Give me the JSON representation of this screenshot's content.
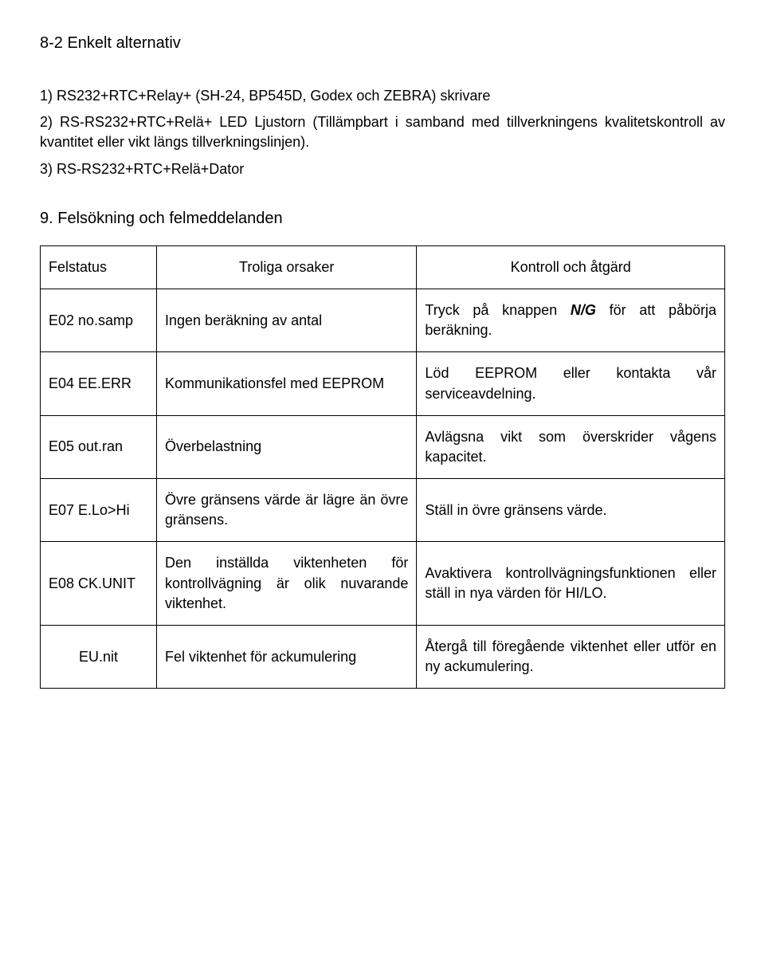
{
  "heading": "8-2 Enkelt alternativ",
  "items": [
    "1) RS232+RTC+Relay+ (SH-24, BP545D, Godex och ZEBRA) skrivare",
    "2) RS-RS232+RTC+Relä+ LED Ljustorn (Tillämpbart i samband med tillverkningens kvalitetskontroll av kvantitet eller vikt längs tillverkningslinjen).",
    "3) RS-RS232+RTC+Relä+Dator"
  ],
  "section": "9. Felsökning och felmeddelanden",
  "table": {
    "headers": [
      "Felstatus",
      "Troliga orsaker",
      "Kontroll och åtgärd"
    ],
    "rows": [
      {
        "c0": "E02 no.samp",
        "c1": "Ingen beräkning av antal",
        "c2_pre": "Tryck på knappen ",
        "c2_bold": "N/G",
        "c2_post": " för att påbörja beräkning."
      },
      {
        "c0": "E04 EE.ERR",
        "c1": "Kommunikationsfel med EEPROM",
        "c2": "Löd EEPROM eller kontakta vår serviceavdelning."
      },
      {
        "c0": "E05 out.ran",
        "c1": "Överbelastning",
        "c2": "Avlägsna vikt som överskrider vågens kapacitet."
      },
      {
        "c0": "E07 E.Lo>Hi",
        "c1": "Övre gränsens värde är lägre än övre gränsens.",
        "c2": "Ställ in övre gränsens värde."
      },
      {
        "c0": "E08 CK.UNIT",
        "c1": "Den inställda viktenheten för kontrollvägning är olik nuvarande viktenhet.",
        "c2": "Avaktivera kontrollvägningsfunktionen eller ställ in nya värden för HI/LO."
      },
      {
        "c0": "EU.nit",
        "c1": "Fel viktenhet för ackumulering",
        "c2": "Återgå till föregående viktenhet eller utför en ny ackumulering."
      }
    ]
  }
}
